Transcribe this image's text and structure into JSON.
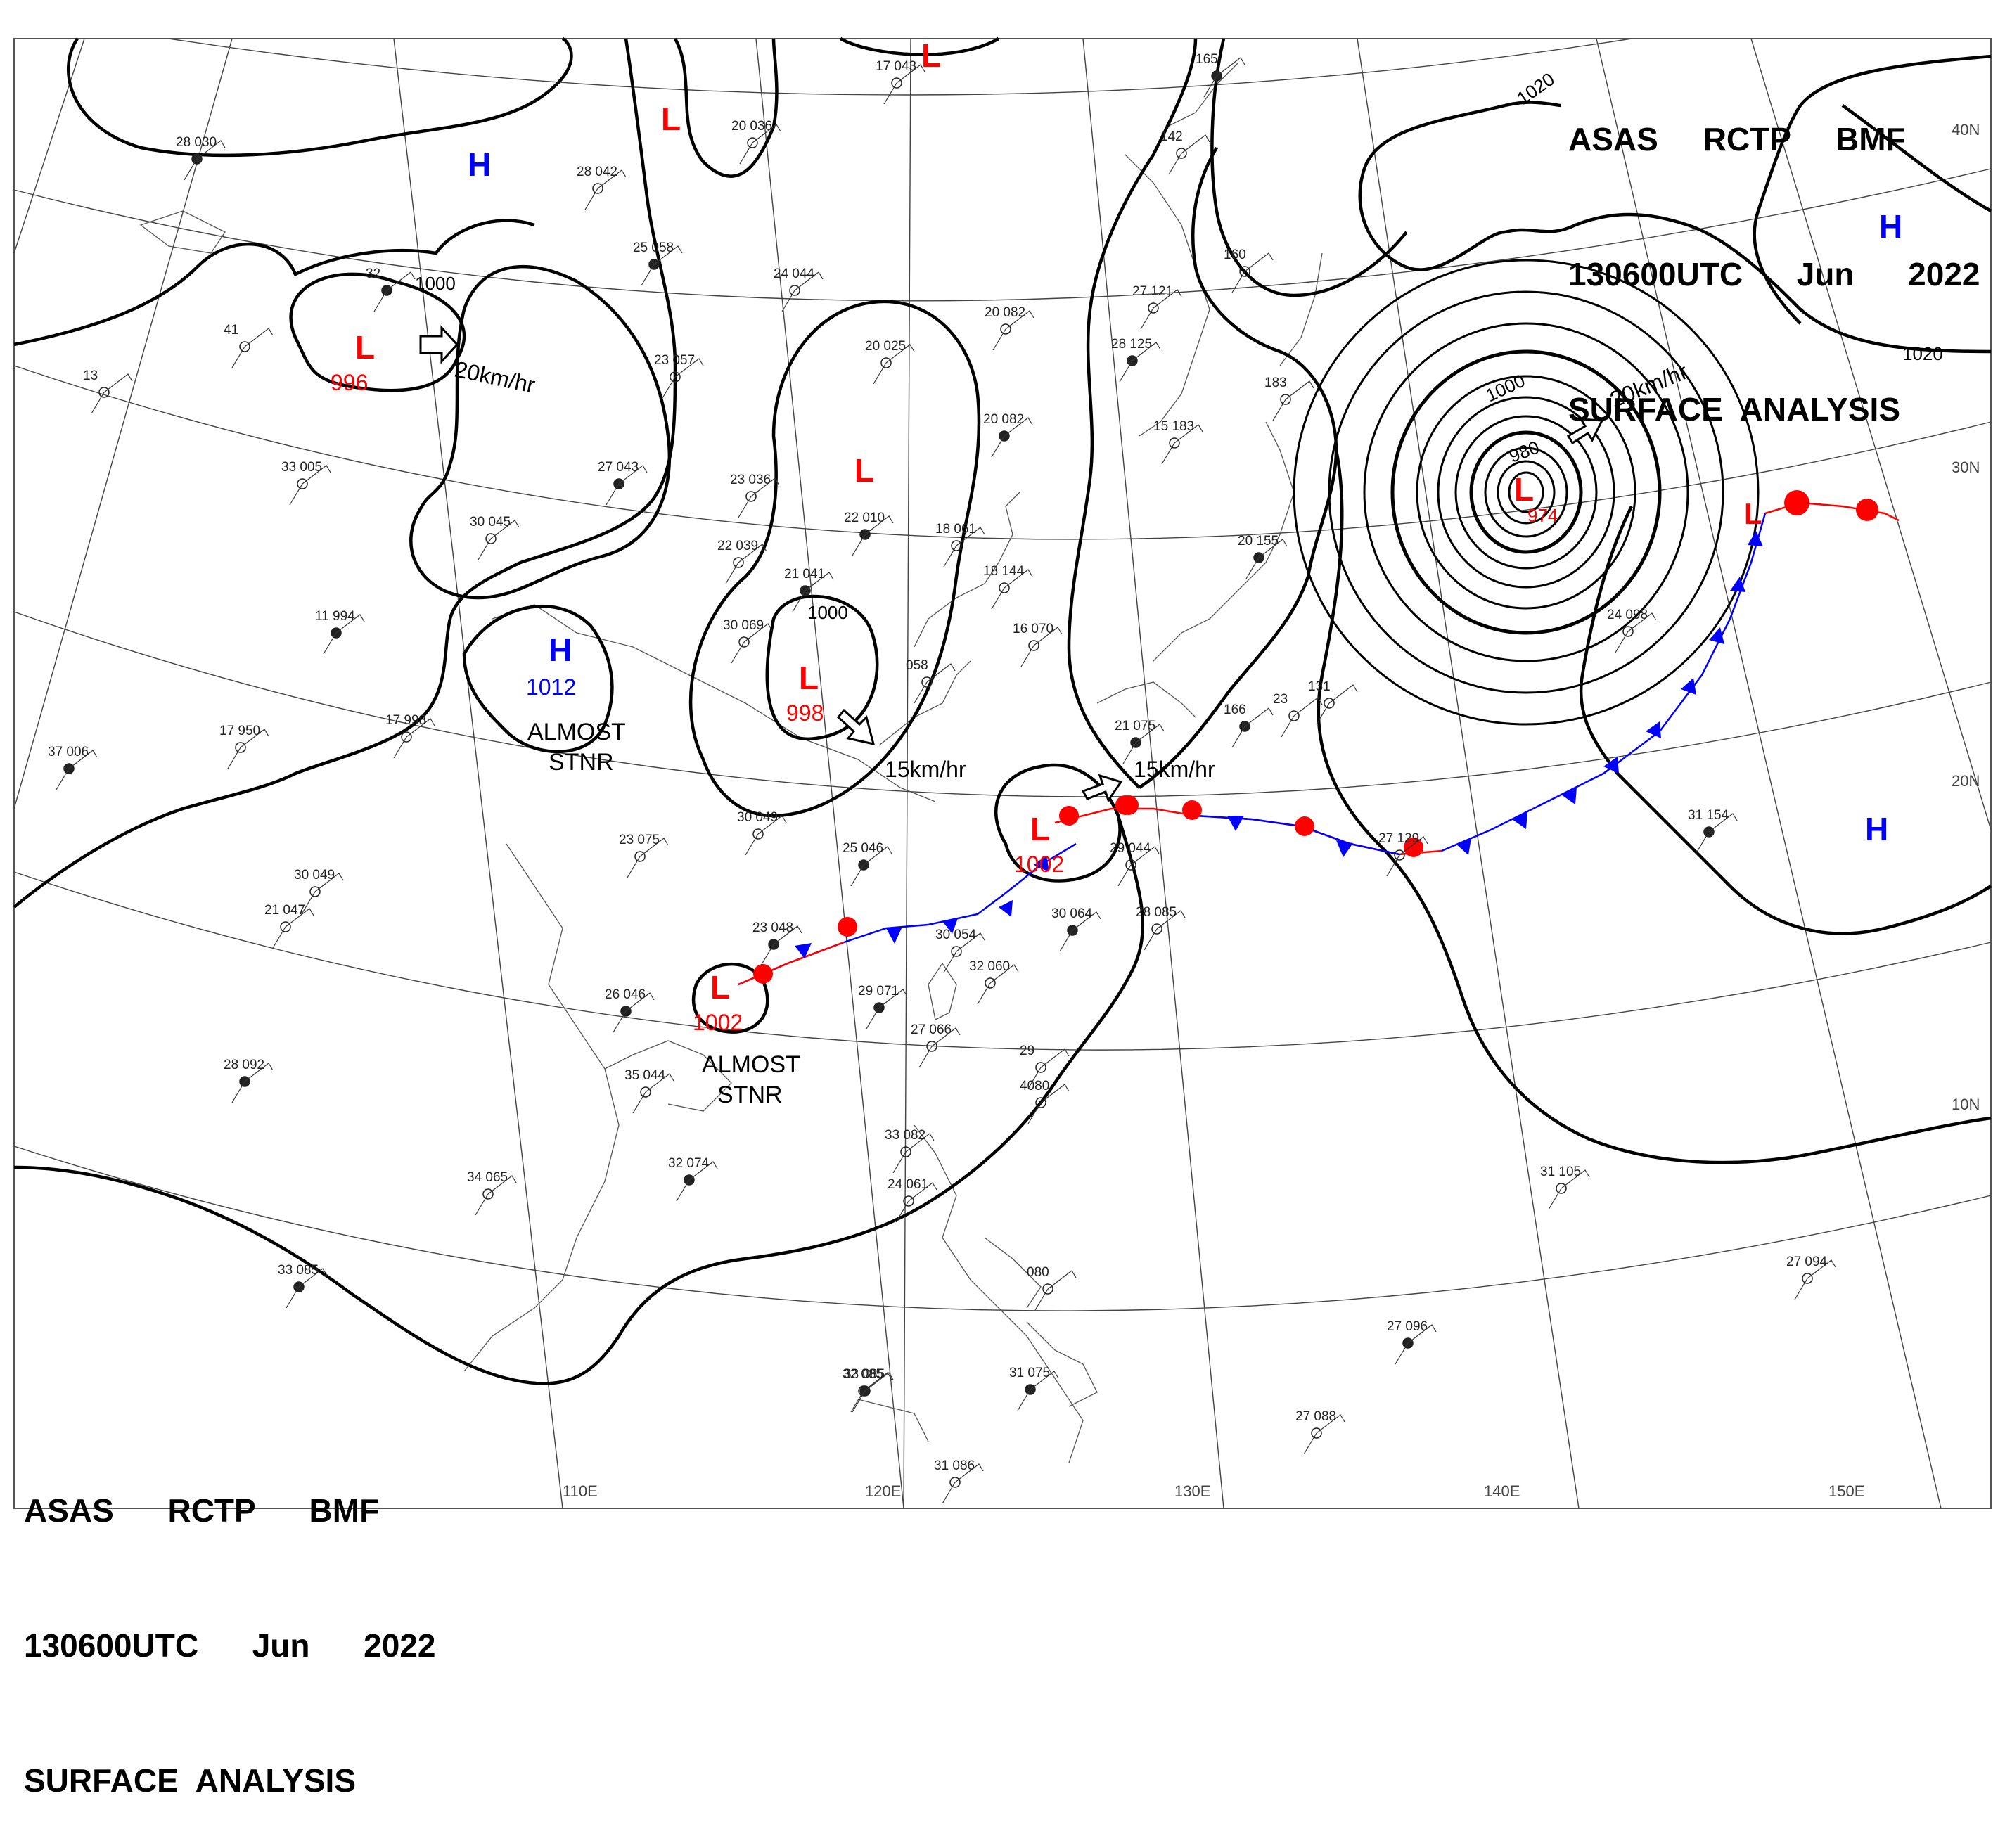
{
  "header_top": {
    "line1": "ASAS     RCTP     BMF",
    "line2": "130600UTC      Jun      2022",
    "line3": "SURFACE  ANALYSIS"
  },
  "header_bottom": {
    "line1": "ASAS      RCTP      BMF",
    "line2": "130600UTC      Jun      2022",
    "line3": "SURFACE  ANALYSIS"
  },
  "colors": {
    "low": "#ff0000",
    "high": "#0000ff",
    "isobar": "#000000",
    "warm_front": "#ff0000",
    "cold_front": "#0000ff"
  },
  "lon_labels": [
    "110E",
    "120E",
    "130E",
    "140E",
    "150E"
  ],
  "lat_labels": [
    "40N",
    "30N",
    "20N",
    "10N"
  ],
  "isobar_labels": [
    "1000",
    "1020",
    "1020",
    "1000",
    "1000",
    "980"
  ],
  "pressure_systems": [
    {
      "type": "L",
      "value": "996"
    },
    {
      "type": "L",
      "value": ""
    },
    {
      "type": "L",
      "value": ""
    },
    {
      "type": "L",
      "value": ""
    },
    {
      "type": "L",
      "value": "998"
    },
    {
      "type": "L",
      "value": "1002"
    },
    {
      "type": "L",
      "value": "1002"
    },
    {
      "type": "L",
      "value": "974"
    },
    {
      "type": "L",
      "value": ""
    },
    {
      "type": "H",
      "value": ""
    },
    {
      "type": "H",
      "value": "1012"
    },
    {
      "type": "H",
      "value": ""
    },
    {
      "type": "H",
      "value": ""
    }
  ],
  "motions": [
    "20km/hr",
    "15km/hr",
    "15km/hr",
    "20km/hr"
  ],
  "annotations": [
    {
      "line1": "ALMOST",
      "line2": "STNR"
    },
    {
      "line1": "ALMOST",
      "line2": "STNR"
    }
  ],
  "station_obs": [
    "28 030",
    "20 036",
    "28 042",
    "32",
    "41",
    "13",
    "25 058",
    "24 044",
    "23 057",
    "27 043",
    "33 005",
    "30 045",
    "11 994",
    "17 950",
    "17 998",
    "37 006",
    "20 025",
    "23 036",
    "22 010",
    "18 061",
    "22 039",
    "21 041",
    "30 069",
    "20 082",
    "28 125",
    "27 121",
    "160",
    "20 082",
    "15 183",
    "183",
    "20 155",
    "18 144",
    "16 070",
    "21 075",
    "23",
    "131",
    "166",
    "27 129",
    "24 098",
    "31 154",
    "17 043",
    "142",
    "165",
    "30 049",
    "23 075",
    "25 046",
    "21 047",
    "30 049",
    "23 048",
    "30 054",
    "29 044",
    "30 064",
    "28 085",
    "32 060",
    "29 071",
    "27 066",
    "29",
    "28 092",
    "35 044",
    "34 065",
    "32 074",
    "33 082",
    "24 061",
    "33 085",
    "32 085",
    "080",
    "31 075",
    "31 086",
    "27 088",
    "27 096",
    "27 094",
    "31 105",
    "26 046",
    "4080",
    "058",
    "33 085"
  ]
}
